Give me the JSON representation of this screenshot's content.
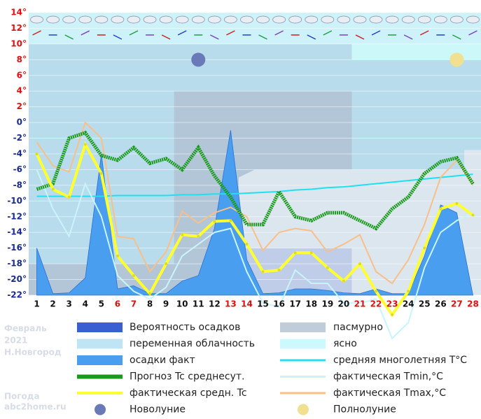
{
  "chart_data": {
    "type": "line",
    "x": [
      1,
      2,
      3,
      4,
      5,
      6,
      7,
      8,
      9,
      10,
      11,
      12,
      13,
      14,
      15,
      16,
      17,
      18,
      19,
      20,
      21,
      22,
      23,
      24,
      25,
      26,
      27,
      28
    ],
    "xlim": [
      0.5,
      28.5
    ],
    "xticks": [
      1,
      2,
      3,
      4,
      5,
      6,
      7,
      8,
      9,
      10,
      11,
      12,
      13,
      14,
      15,
      16,
      17,
      18,
      19,
      20,
      21,
      22,
      23,
      24,
      25,
      26,
      27,
      28
    ],
    "red_days": [
      6,
      7,
      13,
      14,
      21,
      22,
      23,
      27,
      28
    ],
    "ylim": [
      -22,
      14
    ],
    "yticks": [
      {
        "value": 14,
        "label": "14°"
      },
      {
        "value": 12,
        "label": "12°"
      },
      {
        "value": 10,
        "label": "10°"
      },
      {
        "value": 8,
        "label": "8°"
      },
      {
        "value": 6,
        "label": "6°"
      },
      {
        "value": 4,
        "label": "4°"
      },
      {
        "value": 2,
        "label": "2°"
      },
      {
        "value": 0,
        "label": "0°"
      },
      {
        "value": -2,
        "label": "-2°"
      },
      {
        "value": -4,
        "label": "-4°"
      },
      {
        "value": -6,
        "label": "-6°"
      },
      {
        "value": -8,
        "label": "-8°"
      },
      {
        "value": -10,
        "label": "-10°"
      },
      {
        "value": -12,
        "label": "-12°"
      },
      {
        "value": -14,
        "label": "-14°"
      },
      {
        "value": -16,
        "label": "-16°"
      },
      {
        "value": -18,
        "label": "-18°"
      },
      {
        "value": -20,
        "label": "-20°"
      },
      {
        "value": -22,
        "label": "-22°"
      }
    ],
    "grid": true,
    "series": [
      {
        "name": "осадки факт",
        "color": "#4a9ef0",
        "kind": "area",
        "values": [
          -16,
          -21.8,
          -21.7,
          -19.8,
          -4,
          -21.2,
          -20.8,
          -21.8,
          -21.8,
          -20.2,
          -19.5,
          -13.5,
          -1,
          -17.5,
          -21.8,
          -21.7,
          -21.2,
          -21.2,
          -21.4,
          -21.7,
          -21.8,
          -21.2,
          -21.8,
          -21.8,
          -17,
          -10.5,
          -11.5,
          -22
        ]
      },
      {
        "name": "средняя многолетняя T°C",
        "color": "#20e0f0",
        "kind": "line",
        "values": [
          -9.4,
          -9.4,
          -9.4,
          -9.4,
          -9.4,
          -9.3,
          -9.3,
          -9.3,
          -9.3,
          -9.2,
          -9.2,
          -9.1,
          -9.1,
          -9,
          -8.9,
          -8.8,
          -8.6,
          -8.5,
          -8.3,
          -8.2,
          -8.0,
          -7.8,
          -7.6,
          -7.4,
          -7.2,
          -7.0,
          -6.8,
          -6.6
        ]
      },
      {
        "name": "фактическая Tmin,°C",
        "color": "#c8f4fc",
        "kind": "line",
        "values": [
          -6,
          -11,
          -14.5,
          -7.8,
          -12,
          -19.5,
          -21.5,
          -22.5,
          -21,
          -17,
          -15.5,
          -14,
          -13.5,
          -19,
          -23,
          -23.5,
          -18.8,
          -20.5,
          -20.5,
          -23,
          -23,
          -22.5,
          -27.5,
          -25.5,
          -18.5,
          -14,
          -12.5,
          -11.5
        ]
      },
      {
        "name": "фактическая Tmax,°C",
        "color": "#f8c088",
        "kind": "line",
        "values": [
          -2.5,
          -5.5,
          -6.3,
          0,
          -2,
          -14.5,
          -14.8,
          -19,
          -16.5,
          -11.3,
          -12.8,
          -11.5,
          -10.8,
          -12,
          -16.3,
          -14,
          -13.5,
          -13.8,
          -16.5,
          -15.5,
          -14.3,
          -19,
          -20.5,
          -17.5,
          -13,
          -7,
          -4.8,
          -8
        ]
      },
      {
        "name": "Прогноз Tc среднесут.",
        "color": "#1a9a1a",
        "kind": "dotted",
        "values": [
          -8.5,
          -7.8,
          -2,
          -1.3,
          -4.2,
          -4.8,
          -3.2,
          -5.2,
          -4.6,
          -6,
          -3.2,
          -6.8,
          -9.5,
          -13,
          -13,
          -8.8,
          -12,
          -12.5,
          -11.5,
          -11.5,
          -12.5,
          -13.5,
          -11,
          -9.5,
          -6.5,
          -5,
          -4.5,
          -7.8
        ]
      },
      {
        "name": "фактическая средн. Tc",
        "color": "#ffff30",
        "kind": "thick",
        "values": [
          -4,
          -8.5,
          -9.5,
          -2.8,
          -6.5,
          -17,
          -19.5,
          -21.8,
          -18,
          -14.3,
          -14.5,
          -12.6,
          -12.5,
          -15.5,
          -19,
          -18.8,
          -16.6,
          -16.6,
          -18.5,
          -20.2,
          -18,
          -21.5,
          -24.5,
          -21.5,
          -16,
          -11,
          -10.3,
          -11.8
        ]
      }
    ],
    "moons": [
      {
        "name": "Новолуние",
        "day": 11,
        "value": 8,
        "color": "#6a7ab8"
      },
      {
        "name": "Полнолуние",
        "day": 27,
        "value": 8,
        "color": "#f0e090"
      }
    ],
    "legend": [
      "Вероятность осадков",
      "переменная облачность",
      "осадки факт",
      "Прогноз Tc среднесут.",
      "фактическая средн. Tc",
      "Новолуние",
      "пасмурно",
      "ясно",
      "средняя многолетняя T°C",
      "фактическая Tmin,°C",
      "фактическая Tmax,°C",
      "Полнолуние"
    ],
    "legend_colors": [
      "#3a5fd0",
      "#bfe4f4",
      "#4a9ef0",
      "#1a9a1a",
      "#ffff30",
      "#6a7ab8",
      "#c0ccd8",
      "#ccfafc",
      "#20e0f0",
      "#c8f4fc",
      "#f8c088",
      "#f0e090"
    ],
    "caption": [
      "Февраль",
      "2021",
      "Н.Новгород"
    ],
    "site": [
      "Погода",
      "abc2home.ru"
    ]
  }
}
